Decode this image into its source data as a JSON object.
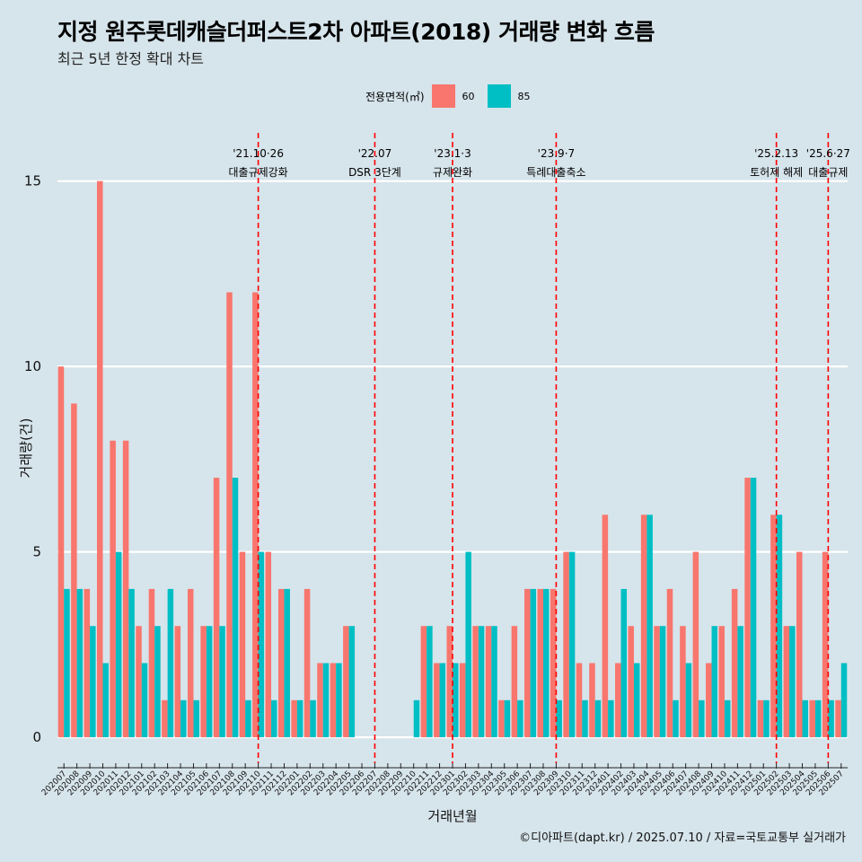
{
  "title": "지정 원주롯데캐슬더퍼스트2차 아파트(2018) 거래량 변화 흐름",
  "subtitle": "최근 5년 한정 확대 차트",
  "caption": "©디아파트(dapt.kr) / 2025.07.10 / 자료=국토교통부 실거래가",
  "legend": {
    "title": "전용면적(㎡)",
    "items": [
      {
        "label": "60",
        "color": "#f8766d"
      },
      {
        "label": "85",
        "color": "#00bfc4"
      }
    ]
  },
  "chart_data": {
    "type": "bar",
    "title": "지정 원주롯데캐슬더퍼스트2차 아파트(2018) 거래량 변화 흐름",
    "xlabel": "거래년월",
    "ylabel": "거래량(건)",
    "ylim": [
      -0.7,
      16.3
    ],
    "yticks": [
      0,
      5,
      10,
      15
    ],
    "categories": [
      "202007",
      "202008",
      "202009",
      "202010",
      "202011",
      "202012",
      "202101",
      "202102",
      "202103",
      "202104",
      "202105",
      "202106",
      "202107",
      "202108",
      "202109",
      "202110",
      "202111",
      "202112",
      "202201",
      "202202",
      "202203",
      "202204",
      "202205",
      "202206",
      "202207",
      "202208",
      "202209",
      "202210",
      "202211",
      "202212",
      "202301",
      "202302",
      "202303",
      "202304",
      "202305",
      "202306",
      "202307",
      "202308",
      "202309",
      "202310",
      "202311",
      "202312",
      "202401",
      "202402",
      "202403",
      "202404",
      "202405",
      "202406",
      "202407",
      "202408",
      "202409",
      "202410",
      "202411",
      "202412",
      "202501",
      "202502",
      "202503",
      "202504",
      "202505",
      "202506",
      "202507"
    ],
    "series": [
      {
        "name": "60",
        "color": "#f8766d",
        "values": [
          10,
          9,
          4,
          15,
          8,
          8,
          3,
          4,
          1,
          3,
          4,
          3,
          7,
          12,
          5,
          12,
          5,
          4,
          1,
          4,
          2,
          2,
          3,
          0,
          0,
          0,
          0,
          0,
          3,
          2,
          3,
          2,
          3,
          3,
          1,
          3,
          4,
          4,
          4,
          5,
          2,
          2,
          6,
          2,
          3,
          6,
          3,
          4,
          3,
          5,
          2,
          3,
          4,
          7,
          1,
          6,
          3,
          5,
          1,
          5,
          1
        ]
      },
      {
        "name": "85",
        "color": "#00bfc4",
        "values": [
          4,
          4,
          3,
          2,
          5,
          4,
          2,
          3,
          4,
          1,
          1,
          3,
          3,
          7,
          1,
          5,
          1,
          4,
          1,
          1,
          2,
          2,
          3,
          0,
          0,
          0,
          0,
          1,
          3,
          2,
          2,
          5,
          3,
          3,
          1,
          1,
          4,
          4,
          1,
          5,
          1,
          1,
          1,
          4,
          2,
          6,
          3,
          1,
          2,
          1,
          3,
          1,
          3,
          7,
          1,
          6,
          3,
          1,
          1,
          1,
          2
        ]
      }
    ],
    "events": [
      {
        "label1": "'21.10·26",
        "label2": "대출규제강화",
        "x": "202110"
      },
      {
        "label1": "'22.07",
        "label2": "DSR 3단계",
        "x": "202207"
      },
      {
        "label1": "'23.1·3",
        "label2": "규제완화",
        "x": "202301"
      },
      {
        "label1": "'23.9·7",
        "label2": "특례대출축소",
        "x": "202309"
      },
      {
        "label1": "'25.2.13",
        "label2": "토허제 해제",
        "x": "202502"
      },
      {
        "label1": "'25.6·27",
        "label2": "대출규제",
        "x": "202506"
      }
    ],
    "event_line_color": "#ff0000"
  }
}
